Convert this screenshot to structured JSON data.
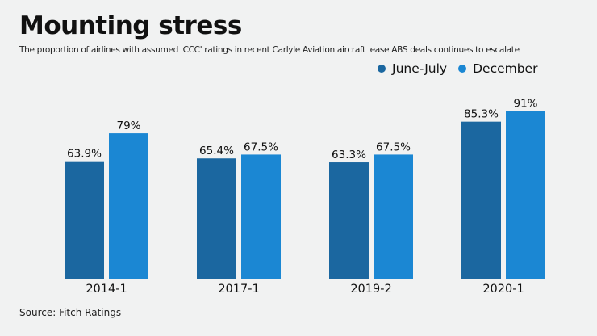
{
  "chart_data": {
    "type": "bar",
    "title": "Mounting stress",
    "subtitle": "The proportion of airlines with assumed 'CCC' ratings in recent Carlyle Aviation aircraft lease ABS deals continues to escalate",
    "categories": [
      "2014-1",
      "2017-1",
      "2019-2",
      "2020-1"
    ],
    "series": [
      {
        "name": "June-July",
        "color": "#1b67a0",
        "values": [
          63.9,
          65.4,
          63.3,
          85.3
        ],
        "labels": [
          "63.9%",
          "65.4%",
          "63.3%",
          "85.3%"
        ]
      },
      {
        "name": "December",
        "color": "#1b87d3",
        "values": [
          79,
          67.5,
          67.5,
          91
        ],
        "labels": [
          "79%",
          "67.5%",
          "67.5%",
          "91%"
        ]
      }
    ],
    "xlabel": "",
    "ylabel": "",
    "ylim": [
      0,
      100
    ],
    "grid": false,
    "legend_position": "top-right",
    "source": "Source: Fitch Ratings"
  }
}
